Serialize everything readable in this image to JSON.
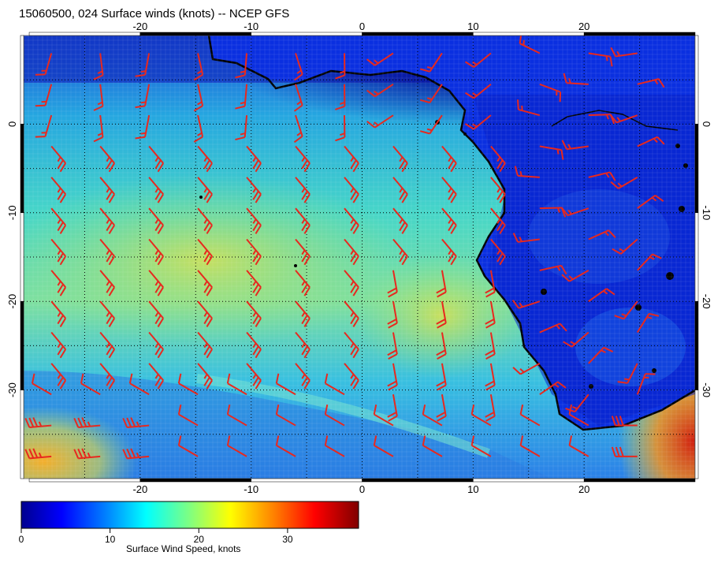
{
  "title": "15060500, 024 Surface winds (knots) -- NCEP GFS",
  "map": {
    "lon_range": [
      -30.5,
      30
    ],
    "lat_range": [
      -40,
      10
    ],
    "lon_ticks": [
      "-20",
      "-10",
      "0",
      "10",
      "20"
    ],
    "lat_ticks": [
      "0",
      "-10",
      "-20",
      "-30"
    ],
    "grid": "dotted",
    "barb_color": "#e8281e",
    "coast_color": "#000000"
  },
  "colorbar": {
    "ticks": [
      "0",
      "10",
      "20",
      "30"
    ],
    "range": [
      0,
      38
    ],
    "label": "Surface Wind Speed, knots",
    "colormap": [
      "#00008f",
      "#0000ff",
      "#0080ff",
      "#00ffff",
      "#80ff80",
      "#ffff00",
      "#ff8000",
      "#ff0000",
      "#800000"
    ]
  },
  "wind_field": {
    "description_units": "knots",
    "regimes": [
      {
        "region": "North equatorial Atlantic",
        "speed_knots": 8,
        "direction": "SW"
      },
      {
        "region": "Open South Atlantic trades",
        "speed_knots": 16,
        "direction": "SE"
      },
      {
        "region": "Benguela coast",
        "speed_knots": 22,
        "direction": "S"
      },
      {
        "region": "Southwest corner",
        "speed_knots": 28,
        "direction": "W"
      },
      {
        "region": "Southern Africa interior",
        "speed_knots": 5,
        "direction": "variable"
      },
      {
        "region": "Cape south-east",
        "speed_knots": 34,
        "direction": "W"
      }
    ]
  }
}
